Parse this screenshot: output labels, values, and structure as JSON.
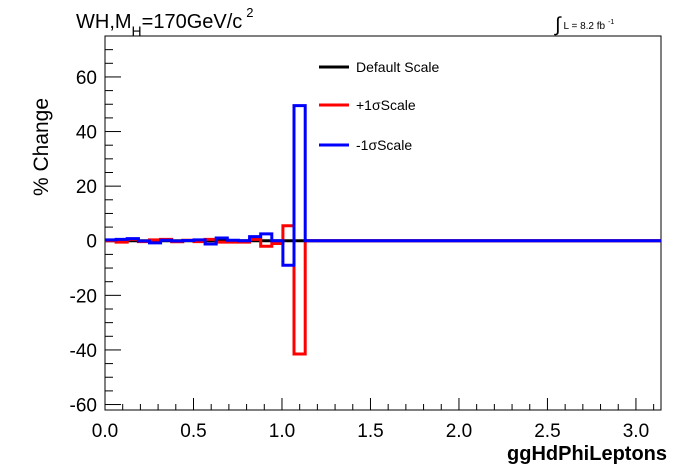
{
  "chart_data": {
    "type": "line",
    "title": "WH,M_H=170GeV/c^2",
    "title_parts": {
      "prefix": "WH,M",
      "subscript": "H",
      "middle": "=170GeV/c",
      "superscript": "2"
    },
    "lumi_label": {
      "integral": "∫",
      "text": "L = 8.2 fb",
      "superscript": "-1"
    },
    "xlabel": "ggHdPhiLeptons",
    "ylabel": "% Change",
    "xlim": [
      0,
      3.1416
    ],
    "ylim": [
      -62,
      75
    ],
    "x_ticks": [
      {
        "value": 0,
        "label": "0.0"
      },
      {
        "value": 0.5,
        "label": "0.5"
      },
      {
        "value": 1.0,
        "label": "1.0"
      },
      {
        "value": 1.5,
        "label": "1.5"
      },
      {
        "value": 2.0,
        "label": "2.0"
      },
      {
        "value": 2.5,
        "label": "2.5"
      },
      {
        "value": 3.0,
        "label": "3.0"
      }
    ],
    "y_ticks": [
      {
        "value": -60,
        "label": "-60"
      },
      {
        "value": -40,
        "label": "-40"
      },
      {
        "value": -20,
        "label": "-20"
      },
      {
        "value": 0,
        "label": "0"
      },
      {
        "value": 20,
        "label": "20"
      },
      {
        "value": 40,
        "label": "40"
      },
      {
        "value": 60,
        "label": "60"
      }
    ],
    "bin_edges": [
      0,
      0.0628,
      0.1257,
      0.1885,
      0.2513,
      0.3142,
      0.377,
      0.4398,
      0.5027,
      0.5655,
      0.6283,
      0.6912,
      0.754,
      0.8168,
      0.8796,
      0.9425,
      1.0053,
      1.0681,
      1.131,
      3.1416
    ],
    "series": [
      {
        "name": "Default Scale",
        "color": "#000000",
        "values": [
          0,
          0,
          0,
          0,
          0,
          0,
          0,
          0,
          0,
          0,
          0,
          0,
          0,
          0,
          0,
          0,
          0,
          0,
          0
        ]
      },
      {
        "name": "+1σScale",
        "color": "#ff0000",
        "values": [
          0,
          -0.5,
          0.5,
          -0.3,
          0.3,
          0.5,
          -0.4,
          0.2,
          -0.3,
          0.5,
          -0.5,
          -0.5,
          -0.5,
          0.5,
          -2.0,
          -1.0,
          5.5,
          -41.5,
          0
        ]
      },
      {
        "name": "-1σScale",
        "color": "#0000ff",
        "values": [
          0.3,
          0.5,
          0.8,
          -0.1,
          -0.8,
          0.2,
          -0.1,
          0.1,
          0.3,
          -1.2,
          1.0,
          0.2,
          0,
          1.5,
          2.5,
          0,
          -9.0,
          49.5,
          0
        ]
      }
    ],
    "legend_position": "top-right",
    "grid": false
  }
}
